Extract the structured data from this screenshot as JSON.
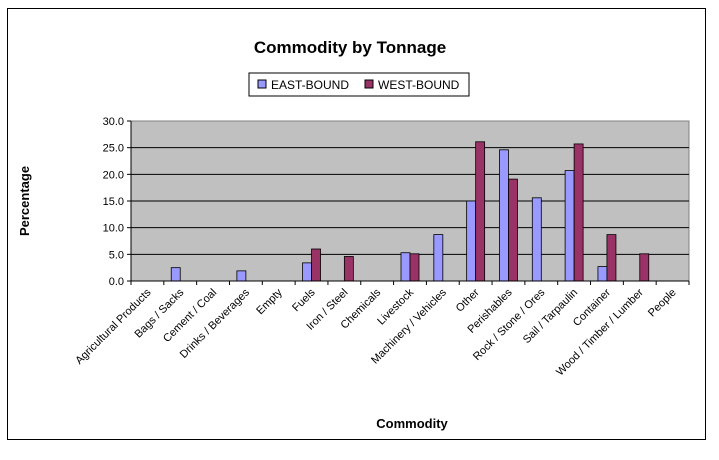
{
  "chart_data": {
    "type": "bar",
    "title": "Commodity by Tonnage",
    "xlabel": "Commodity",
    "ylabel": "Percentage",
    "ylim": [
      0,
      30
    ],
    "yticks": [
      "0.0",
      "5.0",
      "10.0",
      "15.0",
      "20.0",
      "25.0",
      "30.0"
    ],
    "grid": true,
    "legend_position": "top",
    "categories": [
      "Agricultural Products",
      "Bags / Sacks",
      "Cement / Coal",
      "Drinks / Beverages",
      "Empty",
      "Fuels",
      "Iron / Steel",
      "Chemicals",
      "Livestock",
      "Machinery / Vehicles",
      "Other",
      "Perishables",
      "Rock / Stone / Ores",
      "Sail / Tarpaulin",
      "Container",
      "Wood / Timber / Lumber",
      "People"
    ],
    "series": [
      {
        "name": "EAST-BOUND",
        "color": "#9999ff",
        "values": [
          0,
          2.5,
          0,
          1.9,
          0,
          3.4,
          0,
          0,
          5.3,
          8.7,
          15.0,
          24.6,
          15.6,
          20.7,
          2.7,
          0,
          0
        ]
      },
      {
        "name": "WEST-BOUND",
        "color": "#993366",
        "values": [
          0,
          0,
          0,
          0,
          0,
          6.0,
          4.6,
          0,
          5.1,
          0,
          26.1,
          19.1,
          0,
          25.7,
          8.7,
          5.1,
          0
        ]
      }
    ],
    "plot_background": "#c0c0c0"
  }
}
